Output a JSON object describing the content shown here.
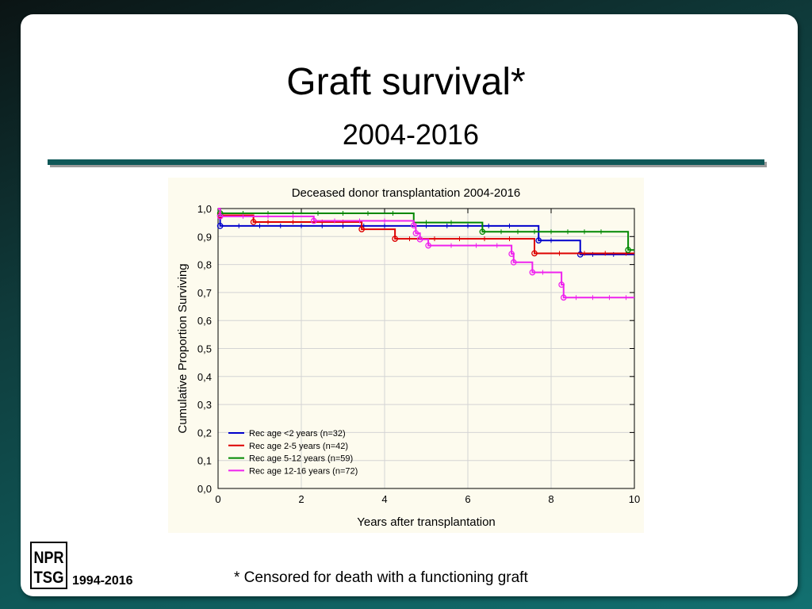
{
  "slide": {
    "title": "Graft survival*",
    "subtitle": "2004-2016",
    "footnote": "* Censored for death with a functioning graft",
    "footer_years": "1994-2016",
    "logo_text": [
      "NPR",
      "TSG"
    ]
  },
  "chart_data": {
    "type": "line",
    "step": true,
    "title": "Deceased donor transplantation 2004-2016",
    "xlabel": "Years after transplantation",
    "ylabel": "Cumulative Proportion Surviving",
    "xlim": [
      0,
      10
    ],
    "ylim": [
      0,
      1
    ],
    "xticks": [
      "0",
      "2",
      "4",
      "6",
      "8",
      "10"
    ],
    "yticks": [
      "0,0",
      "0,1",
      "0,2",
      "0,3",
      "0,4",
      "0,5",
      "0,6",
      "0,7",
      "0,8",
      "0,9",
      "1,0"
    ],
    "grid": true,
    "legend_position": "bottom-left",
    "series": [
      {
        "name": "Rec age <2 years (n=32)",
        "color": "#0000cc",
        "points": [
          [
            0,
            1.0
          ],
          [
            0.05,
            0.938
          ],
          [
            4.7,
            0.938
          ],
          [
            7.7,
            0.886
          ],
          [
            8.7,
            0.836
          ],
          [
            10,
            0.836
          ]
        ],
        "events": [
          [
            0.05,
            0.938
          ],
          [
            7.7,
            0.886
          ],
          [
            8.7,
            0.836
          ]
        ],
        "censored": [
          0.5,
          1.0,
          1.5,
          2.0,
          2.5,
          3.0,
          3.5,
          4.0,
          5.0,
          5.5,
          6.0,
          6.5,
          7.0,
          8.0,
          9.0,
          9.5
        ]
      },
      {
        "name": "Rec age 2-5 years (n=42)",
        "color": "#dd0000",
        "points": [
          [
            0,
            1.0
          ],
          [
            0.05,
            0.976
          ],
          [
            0.85,
            0.952
          ],
          [
            3.45,
            0.926
          ],
          [
            4.25,
            0.892
          ],
          [
            7.6,
            0.84
          ],
          [
            10,
            0.84
          ]
        ],
        "events": [
          [
            0.05,
            0.976
          ],
          [
            0.85,
            0.952
          ],
          [
            3.45,
            0.926
          ],
          [
            4.25,
            0.892
          ],
          [
            7.6,
            0.84
          ]
        ],
        "censored": [
          1.2,
          1.8,
          2.5,
          3.0,
          4.6,
          5.2,
          5.8,
          6.4,
          7.0,
          8.2,
          8.8,
          9.3,
          9.8
        ]
      },
      {
        "name": "Rec age 5-12 years (n=59)",
        "color": "#008800",
        "points": [
          [
            0,
            1.0
          ],
          [
            0.05,
            0.983
          ],
          [
            4.7,
            0.95
          ],
          [
            6.35,
            0.917
          ],
          [
            9.85,
            0.852
          ],
          [
            10,
            0.852
          ]
        ],
        "events": [
          [
            0.05,
            0.983
          ],
          [
            6.35,
            0.917
          ],
          [
            9.85,
            0.852
          ]
        ],
        "censored": [
          0.6,
          1.2,
          1.8,
          2.4,
          3.0,
          3.6,
          4.2,
          5.0,
          5.6,
          6.8,
          7.2,
          7.6,
          8.0,
          8.4,
          8.8,
          9.2
        ]
      },
      {
        "name": "Rec age 12-16 years (n=72)",
        "color": "#ee22ee",
        "points": [
          [
            0,
            1.0
          ],
          [
            0.05,
            0.972
          ],
          [
            2.3,
            0.956
          ],
          [
            4.7,
            0.94
          ],
          [
            4.75,
            0.912
          ],
          [
            4.85,
            0.89
          ],
          [
            5.05,
            0.868
          ],
          [
            7.05,
            0.838
          ],
          [
            7.1,
            0.808
          ],
          [
            7.55,
            0.772
          ],
          [
            8.25,
            0.728
          ],
          [
            8.3,
            0.682
          ],
          [
            10,
            0.682
          ]
        ],
        "events": [
          [
            0.05,
            0.972
          ],
          [
            2.3,
            0.956
          ],
          [
            4.7,
            0.94
          ],
          [
            4.75,
            0.912
          ],
          [
            4.85,
            0.89
          ],
          [
            5.05,
            0.868
          ],
          [
            7.05,
            0.838
          ],
          [
            7.1,
            0.808
          ],
          [
            7.55,
            0.772
          ],
          [
            8.25,
            0.728
          ],
          [
            8.3,
            0.682
          ]
        ],
        "censored": [
          0.6,
          1.2,
          1.8,
          2.8,
          3.4,
          4.0,
          5.6,
          6.2,
          6.7,
          7.8,
          8.6,
          9.0,
          9.4,
          9.8
        ]
      }
    ]
  }
}
